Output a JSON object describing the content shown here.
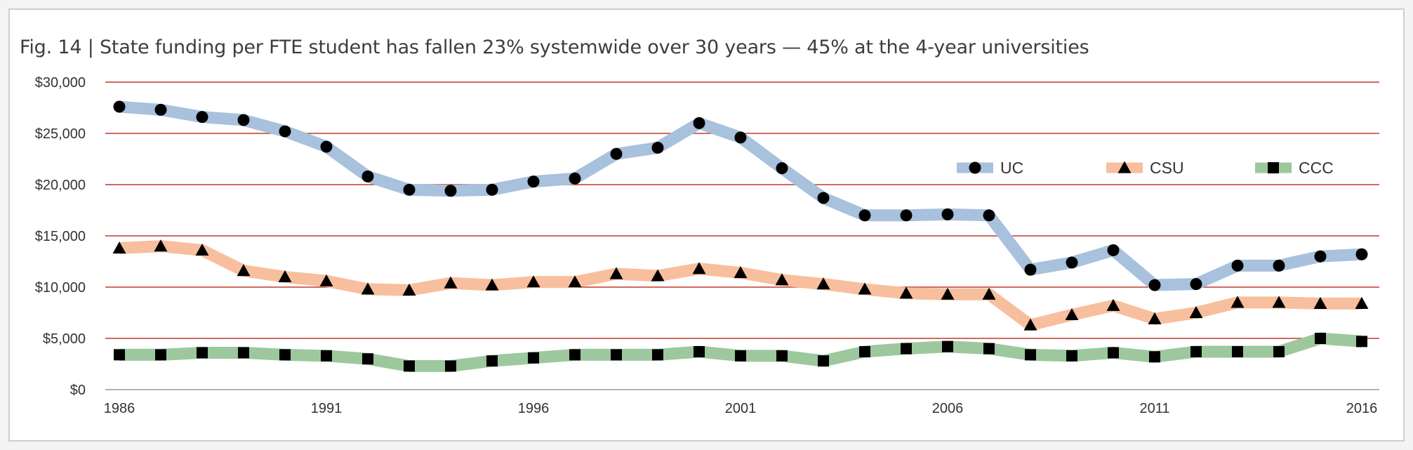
{
  "title": "Fig. 14 | State funding per FTE student has fallen 23% systemwide over 30 years — 45% at the 4-year universities",
  "colors": {
    "gridline": "#c0392b",
    "baseline": "#999999",
    "marker": "#000000",
    "text": "#333333"
  },
  "chart_data": {
    "type": "line",
    "title": "Fig. 14 | State funding per FTE student has fallen 23% systemwide over 30 years — 45% at the 4-year universities",
    "xlabel": "",
    "ylabel": "",
    "x": [
      1986,
      1987,
      1988,
      1989,
      1990,
      1991,
      1992,
      1993,
      1994,
      1995,
      1996,
      1997,
      1998,
      1999,
      2000,
      2001,
      2002,
      2003,
      2004,
      2005,
      2006,
      2007,
      2008,
      2009,
      2010,
      2011,
      2012,
      2013,
      2014,
      2015,
      2016
    ],
    "x_ticks": [
      "1986",
      "1991",
      "1996",
      "2001",
      "2006",
      "2011",
      "2016"
    ],
    "ylim": [
      0,
      30000
    ],
    "y_ticks": [
      "$0",
      "$5,000",
      "$10,000",
      "$15,000",
      "$20,000",
      "$25,000",
      "$30,000"
    ],
    "grid": true,
    "legend_position": "right",
    "series": [
      {
        "name": "UC",
        "color": "#a8c1dd",
        "marker": "circle",
        "values": [
          27600,
          27300,
          26600,
          26300,
          25200,
          23700,
          20800,
          19500,
          19400,
          19500,
          20300,
          20600,
          23000,
          23600,
          26000,
          24600,
          21600,
          18700,
          17000,
          17000,
          17100,
          17000,
          11700,
          12400,
          13600,
          10200,
          10300,
          12100,
          12100,
          13000,
          13200
        ]
      },
      {
        "name": "CSU",
        "color": "#f7bf9d",
        "marker": "triangle",
        "values": [
          13800,
          14000,
          13600,
          11600,
          11000,
          10600,
          9800,
          9700,
          10400,
          10200,
          10500,
          10500,
          11300,
          11100,
          11800,
          11400,
          10700,
          10300,
          9800,
          9400,
          9300,
          9300,
          6300,
          7300,
          8200,
          6900,
          7500,
          8500,
          8500,
          8400,
          8400
        ]
      },
      {
        "name": "CCC",
        "color": "#9dc89d",
        "marker": "square",
        "values": [
          3400,
          3400,
          3600,
          3600,
          3400,
          3300,
          3000,
          2300,
          2300,
          2800,
          3100,
          3400,
          3400,
          3400,
          3700,
          3300,
          3300,
          2800,
          3700,
          4000,
          4200,
          4000,
          3400,
          3300,
          3600,
          3200,
          3700,
          3700,
          3700,
          5000,
          4700
        ]
      }
    ]
  }
}
